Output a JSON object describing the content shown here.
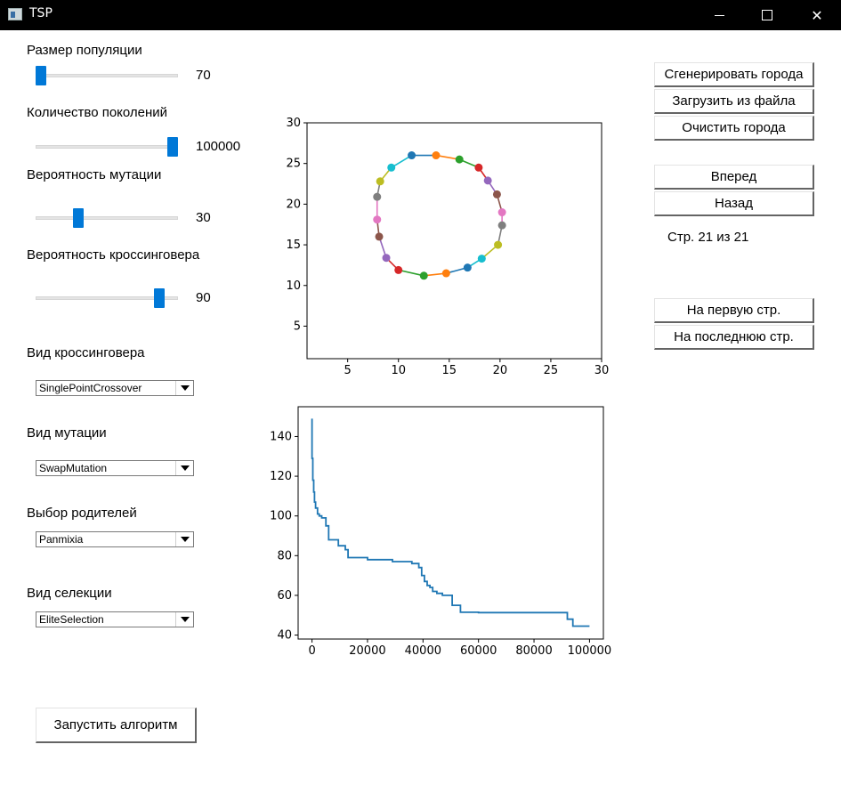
{
  "window": {
    "title": "TSP",
    "app_icon": "window-app-icon",
    "controls": [
      "minimize-icon",
      "maximize-icon",
      "close-icon"
    ]
  },
  "params": {
    "population": {
      "label": "Размер популяции",
      "value": "70",
      "fraction": 0.04
    },
    "generations": {
      "label": "Количество поколений",
      "value": "100000",
      "fraction": 0.96
    },
    "mutation_prob": {
      "label": "Вероятность мутации",
      "value": "30",
      "fraction": 0.3
    },
    "crossover_prob": {
      "label": "Вероятность кроссинговера",
      "value": "90",
      "fraction": 0.87
    }
  },
  "selects": {
    "crossover": {
      "label": "Вид кроссинговера",
      "value": "SinglePointCrossover"
    },
    "mutation": {
      "label": "Вид мутации",
      "value": "SwapMutation"
    },
    "parents": {
      "label": "Выбор родителей",
      "value": "Panmixia"
    },
    "selection": {
      "label": "Вид селекции",
      "value": "EliteSelection"
    }
  },
  "buttons": {
    "run": "Запустить алгоритм",
    "generate": "Сгенерировать города",
    "load": "Загрузить из файла",
    "clear": "Очистить города",
    "forward": "Вперед",
    "back": "Назад",
    "first": "На первую стр.",
    "last": "На последнюю стр."
  },
  "paging": {
    "text": "Стр. 21 из 21"
  },
  "chart_data": [
    {
      "type": "line",
      "title": "",
      "xlabel": "",
      "ylabel": "",
      "xlim": [
        1,
        30
      ],
      "ylim": [
        1,
        30
      ],
      "xticks": [
        5,
        10,
        15,
        20,
        25,
        30
      ],
      "yticks": [
        5,
        10,
        15,
        20,
        25,
        30
      ],
      "grid": false,
      "points": [
        {
          "x": 11.3,
          "y": 26.0
        },
        {
          "x": 13.7,
          "y": 26.0
        },
        {
          "x": 16.0,
          "y": 25.5
        },
        {
          "x": 17.9,
          "y": 24.5
        },
        {
          "x": 18.8,
          "y": 22.9
        },
        {
          "x": 19.7,
          "y": 21.2
        },
        {
          "x": 20.2,
          "y": 19.0
        },
        {
          "x": 20.2,
          "y": 17.4
        },
        {
          "x": 19.8,
          "y": 15.0
        },
        {
          "x": 18.2,
          "y": 13.3
        },
        {
          "x": 16.8,
          "y": 12.2
        },
        {
          "x": 14.7,
          "y": 11.5
        },
        {
          "x": 12.5,
          "y": 11.2
        },
        {
          "x": 10.0,
          "y": 11.9
        },
        {
          "x": 8.8,
          "y": 13.4
        },
        {
          "x": 8.1,
          "y": 16.0
        },
        {
          "x": 7.9,
          "y": 18.1
        },
        {
          "x": 7.9,
          "y": 20.9
        },
        {
          "x": 8.2,
          "y": 22.8
        },
        {
          "x": 9.3,
          "y": 24.5
        }
      ],
      "closed": true,
      "colors": [
        "#1f77b4",
        "#ff7f0e",
        "#2ca02c",
        "#d62728",
        "#9467bd",
        "#8c564b",
        "#e377c2",
        "#7f7f7f",
        "#bcbd22",
        "#17becf"
      ]
    },
    {
      "type": "line",
      "title": "",
      "xlabel": "",
      "ylabel": "",
      "xlim": [
        -5000,
        105000
      ],
      "ylim": [
        38,
        155
      ],
      "xticks": [
        0,
        20000,
        40000,
        60000,
        80000,
        100000
      ],
      "yticks": [
        40,
        60,
        80,
        100,
        120,
        140
      ],
      "grid": false,
      "color": "#1f77b4",
      "x": [
        0,
        0,
        300,
        300,
        600,
        600,
        900,
        900,
        1300,
        1300,
        2000,
        2000,
        2600,
        2600,
        3500,
        3500,
        5000,
        5000,
        6000,
        6000,
        9500,
        9500,
        12000,
        12000,
        13000,
        13000,
        20000,
        20000,
        29000,
        29000,
        36000,
        36000,
        38500,
        38500,
        39500,
        39500,
        40500,
        40500,
        41500,
        41500,
        42500,
        42500,
        43500,
        43500,
        45000,
        45000,
        47000,
        47000,
        50500,
        50500,
        53500,
        53500,
        60000,
        60000,
        92000,
        92000,
        94000,
        94000,
        100000
      ],
      "y": [
        149,
        129,
        129,
        118,
        118,
        112,
        112,
        107,
        107,
        104,
        104,
        101,
        101,
        100,
        100,
        99,
        99,
        95,
        95,
        88,
        88,
        85,
        85,
        83,
        83,
        79,
        79,
        78,
        78,
        77,
        77,
        76,
        76,
        74,
        74,
        70,
        70,
        67,
        67,
        65,
        65,
        64,
        64,
        62,
        62,
        61,
        61,
        60,
        60,
        55,
        55,
        51.5,
        51.5,
        51.3,
        51.3,
        48,
        48,
        44.5,
        44.5
      ]
    }
  ]
}
